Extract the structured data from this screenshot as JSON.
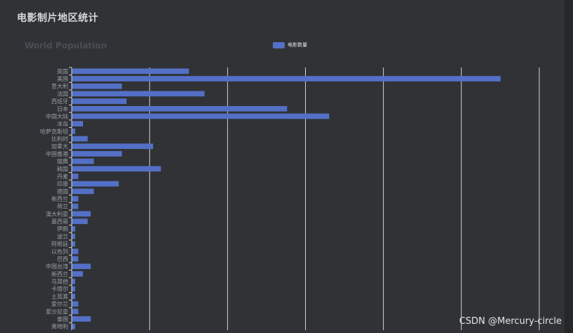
{
  "page": {
    "title": "电影制片地区统计"
  },
  "watermark": "CSDN @Mercury-circle",
  "colors": {
    "bar": "#5470c6",
    "grid": "#d4d4d4",
    "axis_text": "#9aa0a8"
  },
  "chart_data": {
    "type": "bar",
    "orientation": "horizontal",
    "title": "World Population",
    "legend": {
      "entries": [
        "电影数量"
      ],
      "placement": "top"
    },
    "grid": true,
    "xlim": [
      0,
      300
    ],
    "categories": [
      "英国",
      "美国",
      "意大利",
      "法国",
      "西班牙",
      "日本",
      "中国大陆",
      "冰岛",
      "哈萨克斯坦",
      "比利时",
      "加拿大",
      "中国香港",
      "瑞典",
      "韩国",
      "丹麦",
      "印度",
      "德国",
      "新西兰",
      "荷兰",
      "澳大利亚",
      "墨西哥",
      "伊朗",
      "波兰",
      "阿根廷",
      "以色列",
      "巴西",
      "中国台湾",
      "新西兰",
      "马耳他",
      "卡塔尔",
      "土耳其",
      "爱尔兰",
      "爱沙尼亚",
      "泰国",
      "奥地利"
    ],
    "series": [
      {
        "name": "电影数量",
        "values": [
          75,
          275,
          32,
          85,
          35,
          138,
          165,
          7,
          2,
          10,
          52,
          32,
          14,
          57,
          4,
          30,
          14,
          4,
          4,
          12,
          10,
          2,
          2,
          2,
          4,
          4,
          12,
          7,
          2,
          2,
          2,
          4,
          4,
          12,
          2
        ]
      }
    ]
  }
}
